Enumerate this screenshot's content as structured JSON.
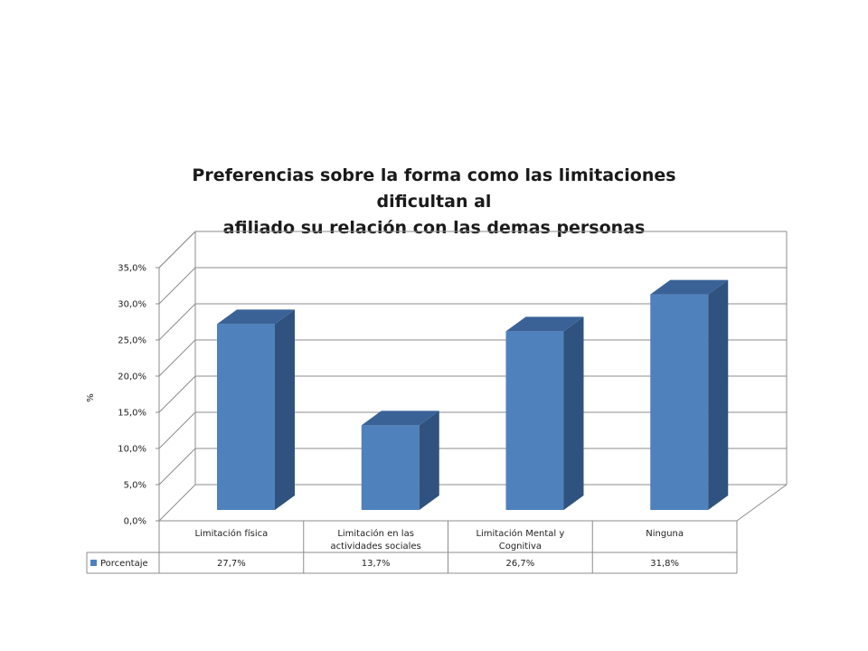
{
  "chart_data": {
    "type": "bar",
    "title_line1": "Preferencias sobre la forma como las limitaciones dificultan  al",
    "title_line2": "afiliado su relación con las demas personas",
    "ylabel": "%",
    "ylim": [
      0,
      35
    ],
    "yticks": [
      "0,0%",
      "5,0%",
      "10,0%",
      "15,0%",
      "20,0%",
      "25,0%",
      "30,0%",
      "35,0%"
    ],
    "categories": [
      [
        "Limitación física"
      ],
      [
        "Limitación en las",
        "actividades sociales"
      ],
      [
        "Limitación Mental y",
        "Cognitiva"
      ],
      [
        "Ninguna"
      ]
    ],
    "series": [
      {
        "name": "Porcentaje",
        "values": [
          27.7,
          13.7,
          26.7,
          31.8
        ],
        "labels": [
          "27,7%",
          "13,7%",
          "26,7%",
          "31,8%"
        ]
      }
    ],
    "grid": true,
    "legend": "data-table",
    "colors": {
      "front": "#4F81BD",
      "side": "#2F537E",
      "top": "#3A6296",
      "grid": "#8c8c8c"
    }
  }
}
